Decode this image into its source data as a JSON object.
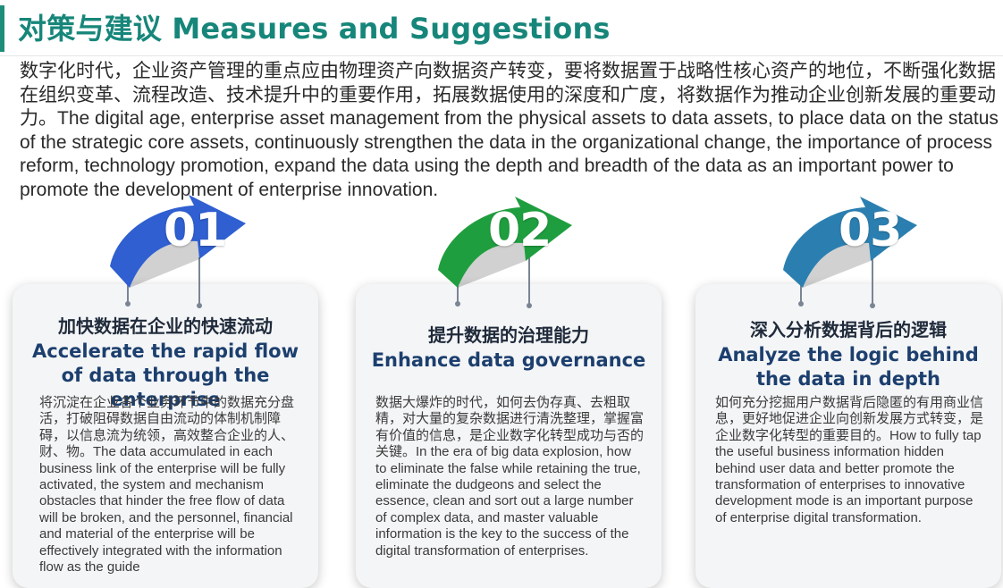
{
  "header": {
    "title": "对策与建议 Measures and Suggestions"
  },
  "intro": {
    "text": "数字化时代，企业资产管理的重点应由物理资产向数据资产转变，要将数据置于战略性核心资产的地位，不断强化数据在组织变革、流程改造、技术提升中的重要作用，拓展数据使用的深度和广度，将数据作为推动企业创新发展的重要动力。The digital age, enterprise asset management from the physical assets to data assets, to place data on the status of the strategic core assets, continuously strengthen the data in the organizational change, the importance of process reform, technology promotion, expand the data using the depth and breadth of the data as an important power to promote the development of enterprise innovation."
  },
  "colors": {
    "title": "#17867a",
    "badge_1": "#2f5fd0",
    "badge_2": "#1f9e3f",
    "badge_3": "#2b7fb0"
  },
  "cards": [
    {
      "number": "01",
      "title_zh": "加快数据在企业的快速流动",
      "title_en": "Accelerate the rapid flow of data through the enterprise",
      "body": "将沉淀在企业各个业务环节中的数据充分盘活，打破阻碍数据自由流动的体制机制障碍，以信息流为统领，高效整合企业的人、财、物。The data accumulated in each business link of the enterprise will be fully activated, the system and mechanism obstacles that hinder the free flow of data will be broken, and the personnel, financial and material of the enterprise will be effectively integrated with the information flow as the guide"
    },
    {
      "number": "02",
      "title_zh": "提升数据的治理能力",
      "title_en": "Enhance data governance",
      "body": "数据大爆炸的时代，如何去伪存真、去粗取精，对大量的复杂数据进行清洗整理，掌握富有价值的信息，是企业数字化转型成功与否的关键。In the era of big data explosion, how to eliminate the false while retaining the true, eliminate the dudgeons and select the essence, clean and sort out a large number of complex data, and master valuable information is the key to the success of the digital transformation of enterprises."
    },
    {
      "number": "03",
      "title_zh": "深入分析数据背后的逻辑",
      "title_en": "Analyze the logic behind the data in depth",
      "body": "如何充分挖掘用户数据背后隐匿的有用商业信息，更好地促进企业向创新发展方式转变，是企业数字化转型的重要目的。How to fully tap the useful business information hidden behind user data and better promote the transformation of enterprises to innovative development mode is an important purpose of enterprise digital transformation."
    }
  ]
}
